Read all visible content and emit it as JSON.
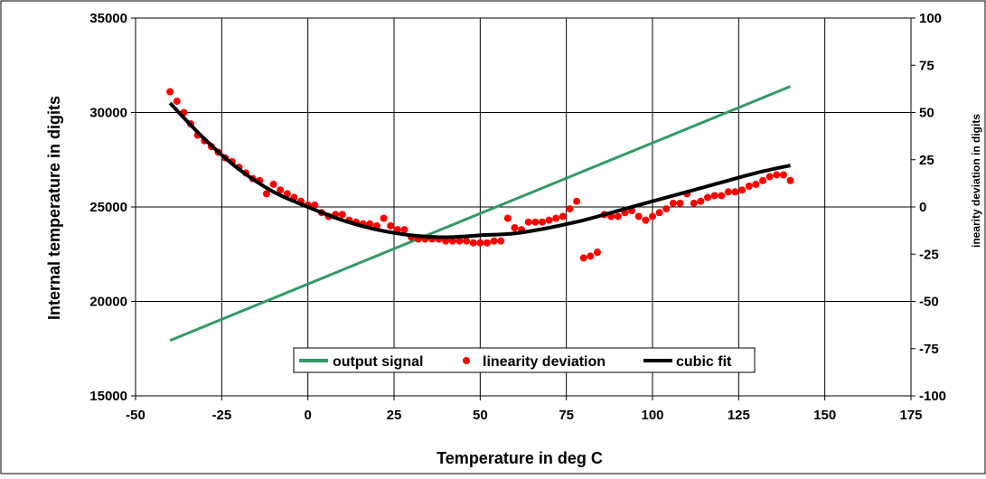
{
  "chart_data": {
    "type": "line",
    "xlabel": "Temperature in deg C",
    "ylabel_left": "Internal temperature in digits",
    "ylabel_right": "inearity deviation  in digits",
    "xlim": [
      -50,
      175
    ],
    "xticks": [
      -50,
      -25,
      0,
      25,
      50,
      75,
      100,
      125,
      150,
      175
    ],
    "ylim_left": [
      15000,
      35000
    ],
    "yticks_left": [
      15000,
      20000,
      25000,
      30000,
      35000
    ],
    "ylim_right": [
      -100,
      100
    ],
    "yticks_right": [
      -100,
      -75,
      -50,
      -25,
      0,
      25,
      50,
      75,
      100
    ],
    "grid": true,
    "legend_position": "bottom-center",
    "series": [
      {
        "name": "output signal",
        "kind": "line",
        "axis": "left",
        "color": "#339966",
        "x": [
          -40,
          140
        ],
        "y": [
          17930,
          31380
        ]
      },
      {
        "name": "linearity deviation",
        "kind": "scatter",
        "axis": "right",
        "color": "#ff0000",
        "x": [
          -40,
          -38,
          -36,
          -34,
          -32,
          -30,
          -28,
          -26,
          -24,
          -22,
          -20,
          -18,
          -16,
          -14,
          -12,
          -10,
          -8,
          -6,
          -4,
          -2,
          0,
          2,
          4,
          6,
          8,
          10,
          12,
          14,
          16,
          18,
          20,
          22,
          24,
          26,
          28,
          30,
          32,
          34,
          36,
          38,
          40,
          42,
          44,
          46,
          48,
          50,
          52,
          54,
          56,
          58,
          60,
          62,
          64,
          66,
          68,
          70,
          72,
          74,
          76,
          78,
          80,
          82,
          84,
          86,
          88,
          90,
          92,
          94,
          96,
          98,
          100,
          102,
          104,
          106,
          108,
          110,
          112,
          114,
          116,
          118,
          120,
          122,
          124,
          126,
          128,
          130,
          132,
          134,
          136,
          138,
          140
        ],
        "y": [
          61,
          56,
          50,
          44,
          38,
          35,
          32,
          29,
          26,
          24,
          21,
          18,
          15,
          14,
          7,
          12,
          9,
          7,
          5,
          3,
          1,
          1,
          -3,
          -5,
          -4,
          -4,
          -7,
          -8,
          -9,
          -9,
          -10,
          -6,
          -10,
          -12,
          -12,
          -16,
          -17,
          -17,
          -17,
          -17,
          -18,
          -18,
          -18,
          -18,
          -19,
          -19,
          -19,
          -18,
          -18,
          -6,
          -11,
          -12,
          -8,
          -8,
          -8,
          -7,
          -6,
          -5,
          -1,
          3,
          -27,
          -26,
          -24,
          -4,
          -5,
          -5,
          -3,
          -2,
          -5,
          -7,
          -5,
          -3,
          -1,
          2,
          2,
          7,
          2,
          3,
          5,
          6,
          6,
          8,
          8,
          9,
          11,
          12,
          14,
          16,
          17,
          17,
          14
        ]
      },
      {
        "name": "cubic fit",
        "kind": "line",
        "axis": "right",
        "color": "#000000",
        "x": [
          -40,
          -30,
          -20,
          -10,
          0,
          10,
          20,
          30,
          40,
          50,
          60,
          70,
          80,
          90,
          100,
          110,
          120,
          130,
          140
        ],
        "y": [
          55,
          36,
          20,
          8,
          0,
          -7,
          -12,
          -15,
          -16,
          -15,
          -14,
          -11,
          -7,
          -2,
          3,
          8,
          13,
          18,
          22
        ]
      }
    ]
  }
}
